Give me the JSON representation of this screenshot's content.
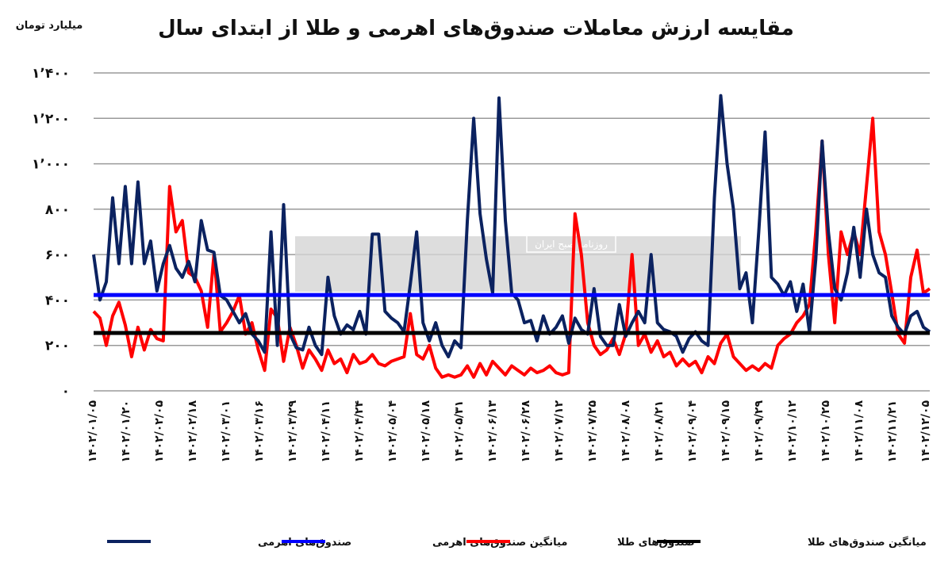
{
  "chart_data": {
    "type": "line",
    "title": "مقایسه ارزش معاملات صندوق‌های اهرمی و طلا از ابتدای سال",
    "ylabel": "میلیارد تومان",
    "xlabel": "",
    "ylim": [
      0,
      1400
    ],
    "yticks": [
      0,
      200,
      400,
      600,
      800,
      1000,
      1200,
      1400
    ],
    "ytick_labels": [
      "۰",
      "۲۰۰",
      "۴۰۰",
      "۶۰۰",
      "۸۰۰",
      "۱٬۰۰۰",
      "۱٬۲۰۰",
      "۱٬۴۰۰"
    ],
    "x_tick_labels": [
      "۱۴۰۲/۰۱/۰۵",
      "۱۴۰۲/۰۱/۲۰",
      "۱۴۰۲/۰۲/۰۵",
      "۱۴۰۲/۰۲/۱۸",
      "۱۴۰۲/۰۳/۰۱",
      "۱۴۰۲/۰۳/۱۶",
      "۱۴۰۲/۰۳/۲۹",
      "۱۴۰۲/۰۴/۱۱",
      "۱۴۰۲/۰۴/۲۴",
      "۱۴۰۲/۰۵/۰۴",
      "۱۴۰۲/۰۵/۱۸",
      "۱۴۰۲/۰۵/۳۱",
      "۱۴۰۲/۰۶/۱۳",
      "۱۴۰۲/۰۶/۲۸",
      "۱۴۰۲/۰۷/۱۲",
      "۱۴۰۲/۰۷/۲۵",
      "۱۴۰۲/۰۸/۰۸",
      "۱۴۰۲/۰۸/۲۱",
      "۱۴۰۲/۰۹/۰۴",
      "۱۴۰۲/۰۹/۱۵",
      "۱۴۰۲/۰۹/۲۹",
      "۱۴۰۲/۱۰/۱۲",
      "۱۴۰۲/۱۰/۲۵",
      "۱۴۰۲/۱۱/۰۸",
      "۱۴۰۲/۱۱/۲۱",
      "۱۴۰۲/۱۲/۰۵"
    ],
    "grid": true,
    "legend_position": "bottom",
    "series": [
      {
        "name": "صندوق‌های اهرمی",
        "color": "#0b2260",
        "values": [
          600,
          400,
          480,
          850,
          560,
          900,
          560,
          920,
          560,
          660,
          440,
          560,
          640,
          540,
          500,
          570,
          480,
          750,
          620,
          610,
          420,
          400,
          350,
          300,
          340,
          250,
          220,
          170,
          700,
          200,
          820,
          250,
          190,
          180,
          280,
          200,
          160,
          500,
          330,
          250,
          290,
          270,
          350,
          250,
          690,
          690,
          350,
          320,
          300,
          260,
          470,
          700,
          300,
          220,
          300,
          200,
          150,
          220,
          190,
          750,
          1200,
          780,
          580,
          430,
          1290,
          750,
          430,
          400,
          300,
          310,
          220,
          330,
          250,
          280,
          330,
          210,
          320,
          270,
          250,
          450,
          240,
          200,
          200,
          380,
          240,
          300,
          350,
          300,
          600,
          300,
          270,
          260,
          240,
          170,
          230,
          260,
          220,
          200,
          850,
          1300,
          1000,
          800,
          450,
          520,
          300,
          700,
          1140,
          500,
          470,
          420,
          480,
          350,
          470,
          260,
          580,
          1100,
          700,
          450,
          400,
          520,
          720,
          500,
          800,
          600,
          520,
          500,
          330,
          280,
          250,
          330,
          350,
          280,
          260
        ]
      },
      {
        "name": "میانگین صندوق‌های اهرمی",
        "color": "#0000ff",
        "mean": 422
      },
      {
        "name": "صندوق‌های طلا",
        "color": "#ff0000",
        "values": [
          350,
          320,
          200,
          330,
          390,
          290,
          150,
          280,
          180,
          270,
          230,
          220,
          900,
          700,
          750,
          520,
          500,
          440,
          280,
          600,
          260,
          300,
          350,
          420,
          250,
          300,
          180,
          90,
          360,
          320,
          130,
          280,
          200,
          100,
          180,
          140,
          90,
          180,
          120,
          140,
          80,
          160,
          120,
          130,
          160,
          120,
          110,
          130,
          140,
          150,
          340,
          160,
          140,
          200,
          100,
          60,
          70,
          60,
          70,
          110,
          60,
          120,
          70,
          130,
          100,
          70,
          110,
          90,
          70,
          100,
          80,
          90,
          110,
          80,
          70,
          80,
          780,
          600,
          300,
          200,
          160,
          180,
          230,
          160,
          250,
          600,
          200,
          250,
          170,
          220,
          150,
          170,
          110,
          140,
          110,
          130,
          80,
          150,
          120,
          210,
          250,
          150,
          120,
          90,
          110,
          90,
          120,
          100,
          200,
          230,
          250,
          300,
          330,
          380,
          700,
          1100,
          600,
          300,
          700,
          600,
          700,
          600,
          900,
          1200,
          700,
          600,
          430,
          250,
          210,
          500,
          620,
          430,
          450
        ]
      },
      {
        "name": "میانگین صندوق‌های طلا",
        "color": "#000000",
        "mean": 255
      }
    ]
  },
  "watermark": {
    "text": "روزنامه صبح ایران"
  }
}
